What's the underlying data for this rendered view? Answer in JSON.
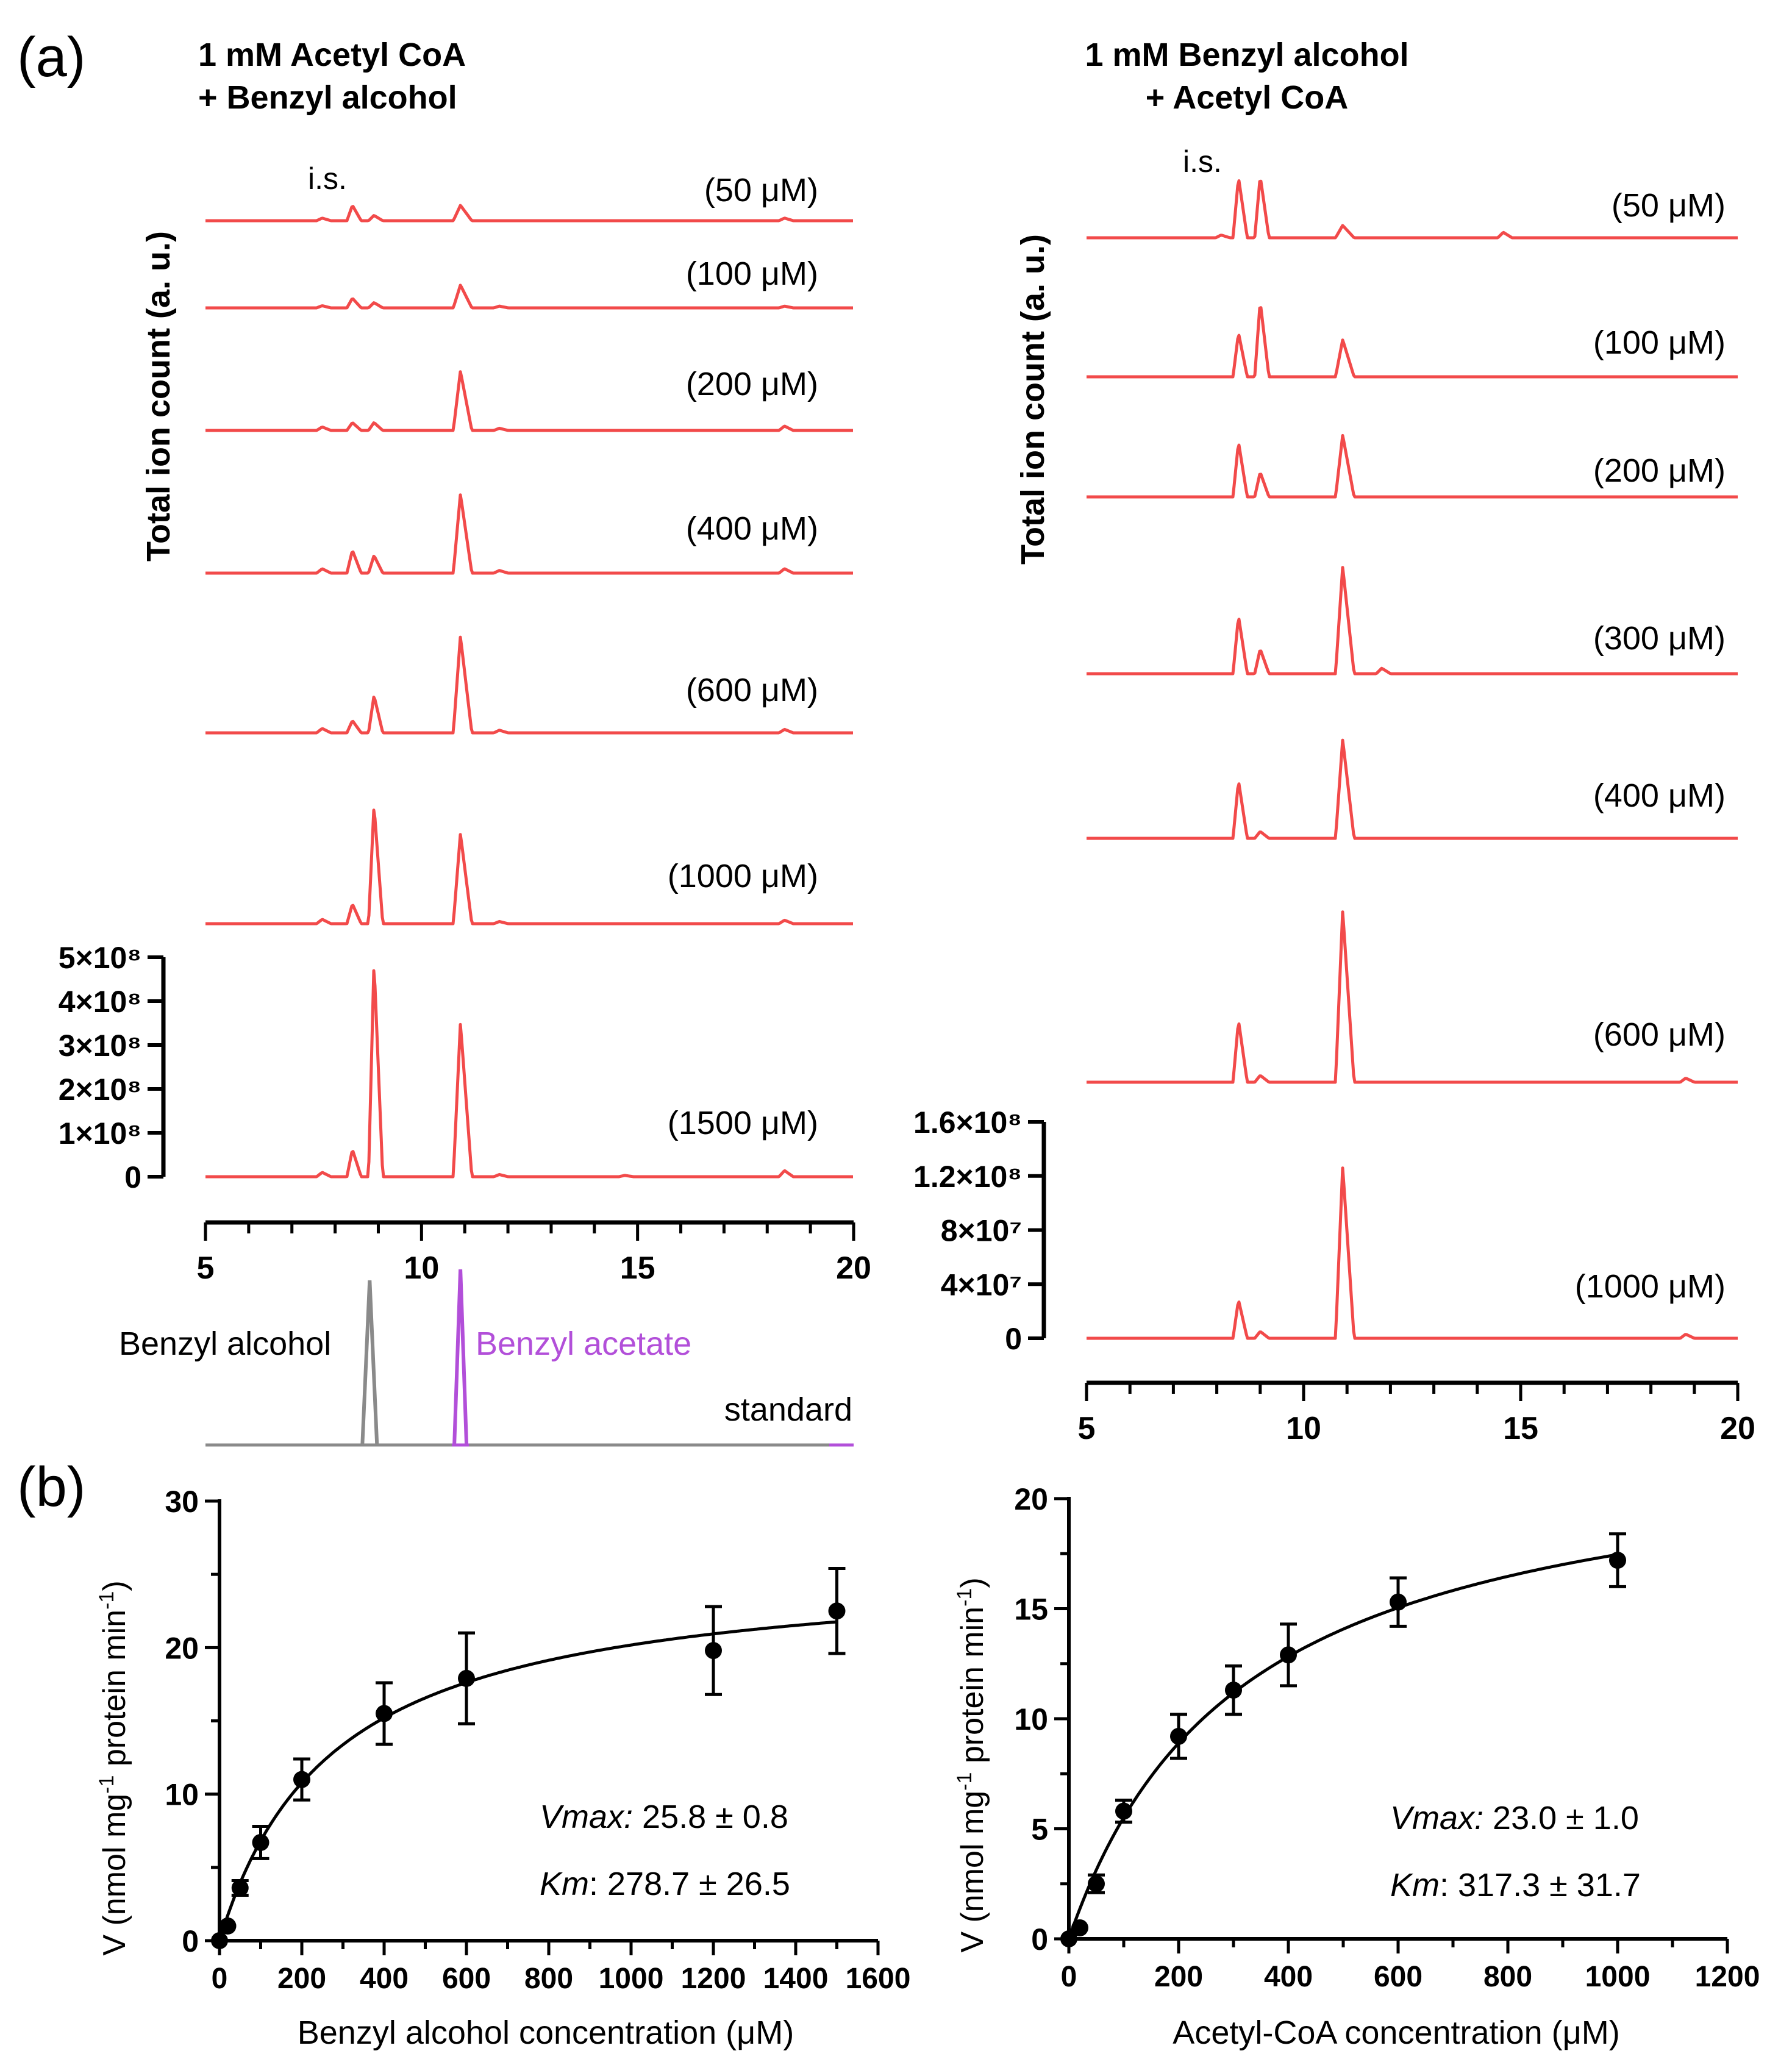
{
  "colors": {
    "trace": "#f24a4a",
    "standard_alcohol": "#8a8a8a",
    "standard_acetate": "#b24fd9",
    "axis": "#000000"
  },
  "panel_a": {
    "label": "(a)",
    "left": {
      "title_line1": "1 mM Acetyl CoA",
      "title_line2": "+ Benzyl alcohol",
      "ylabel": "Total ion count (a. u.)",
      "is_label": "i.s.",
      "traces": [
        "(50 μM)",
        "(100 μM)",
        "(200 μM)",
        "(400 μM)",
        "(600 μM)",
        "(1000 μM)",
        "(1500 μM)"
      ],
      "y_ticks": [
        "5×10⁸",
        "4×10⁸",
        "3×10⁸",
        "2×10⁸",
        "1×10⁸",
        "0"
      ],
      "x_ticks": [
        "5",
        "10",
        "15",
        "20"
      ],
      "standard": {
        "alcohol_label": "Benzyl alcohol",
        "acetate_label": "Benzyl acetate",
        "label": "standard"
      }
    },
    "right": {
      "title_line1": "1 mM Benzyl alcohol",
      "title_line2": "+ Acetyl CoA",
      "ylabel": "Total ion count (a. u.)",
      "is_label": "i.s.",
      "traces": [
        "(50 μM)",
        "(100 μM)",
        "(200 μM)",
        "(300 μM)",
        "(400 μM)",
        "(600 μM)",
        "(1000 μM)"
      ],
      "y_ticks": [
        "1.6×10⁸",
        "1.2×10⁸",
        "8×10⁷",
        "4×10⁷",
        "0"
      ],
      "x_ticks": [
        "5",
        "10",
        "15",
        "20"
      ]
    }
  },
  "panel_b": {
    "label": "(b)",
    "left": {
      "ylabel_main": "V (nmol mg",
      "ylabel_sup": "-1",
      "ylabel_mid": " protein min",
      "ylabel_end": ")",
      "xlabel": "Benzyl alcohol concentration (μM)",
      "y_ticks": [
        "0",
        "10",
        "20",
        "30"
      ],
      "x_ticks": [
        "0",
        "200",
        "400",
        "600",
        "800",
        "1000",
        "1200",
        "1400",
        "1600"
      ],
      "vmax_label": "Vmax:",
      "vmax_value": " 25.8 ± 0.8",
      "km_label": "Km",
      "km_value": ": 278.7 ± 26.5"
    },
    "right": {
      "ylabel_main": "V (nmol mg",
      "ylabel_sup": "-1",
      "ylabel_mid": " protein min",
      "ylabel_end": ")",
      "xlabel": "Acetyl-CoA concentration (μM)",
      "y_ticks": [
        "0",
        "5",
        "10",
        "15",
        "20"
      ],
      "x_ticks": [
        "0",
        "200",
        "400",
        "600",
        "800",
        "1000",
        "1200"
      ],
      "vmax_label": "Vmax:",
      "vmax_value": " 23.0 ± 1.0",
      "km_label": "Km",
      "km_value": ": 317.3 ± 31.7"
    }
  },
  "chart_data": [
    {
      "type": "line",
      "title": "1 mM Acetyl CoA + Benzyl alcohol",
      "xlabel": "",
      "ylabel": "Total ion count (a. u.)",
      "xlim": [
        5,
        20
      ],
      "ylim": [
        0,
        500000000
      ],
      "peak_times": {
        "is": 8.4,
        "benzyl_alcohol": 8.9,
        "benzyl_acetate": 10.9
      },
      "series": [
        {
          "name": "(50 μM)",
          "peaks": [
            [
              7.7,
              6000000
            ],
            [
              8.4,
              35000000
            ],
            [
              8.9,
              12000000
            ],
            [
              10.9,
              35000000
            ],
            [
              18.4,
              6000000
            ]
          ]
        },
        {
          "name": "(100 μM)",
          "peaks": [
            [
              7.7,
              5000000
            ],
            [
              8.4,
              22000000
            ],
            [
              8.9,
              12000000
            ],
            [
              10.9,
              52000000
            ],
            [
              11.8,
              4000000
            ],
            [
              18.4,
              4000000
            ]
          ]
        },
        {
          "name": "(200 μM)",
          "peaks": [
            [
              7.7,
              8000000
            ],
            [
              8.4,
              18000000
            ],
            [
              8.9,
              18000000
            ],
            [
              10.9,
              135000000
            ],
            [
              11.8,
              5000000
            ],
            [
              18.4,
              10000000
            ]
          ]
        },
        {
          "name": "(400 μM)",
          "peaks": [
            [
              7.7,
              10000000
            ],
            [
              8.4,
              52000000
            ],
            [
              8.9,
              40000000
            ],
            [
              10.9,
              180000000
            ],
            [
              11.8,
              6000000
            ],
            [
              18.4,
              10000000
            ]
          ]
        },
        {
          "name": "(600 μM)",
          "peaks": [
            [
              7.7,
              10000000
            ],
            [
              8.4,
              28000000
            ],
            [
              8.9,
              85000000
            ],
            [
              10.9,
              220000000
            ],
            [
              11.8,
              6000000
            ],
            [
              18.4,
              8000000
            ]
          ]
        },
        {
          "name": "(1000 μM)",
          "peaks": [
            [
              7.7,
              10000000
            ],
            [
              8.4,
              45000000
            ],
            [
              8.9,
              270000000
            ],
            [
              10.9,
              205000000
            ],
            [
              11.8,
              5000000
            ],
            [
              18.4,
              8000000
            ]
          ]
        },
        {
          "name": "(1500 μM)",
          "peaks": [
            [
              7.7,
              10000000
            ],
            [
              8.4,
              62000000
            ],
            [
              8.9,
              490000000
            ],
            [
              10.9,
              350000000
            ],
            [
              11.8,
              5000000
            ],
            [
              14.7,
              3000000
            ],
            [
              18.4,
              14000000
            ]
          ]
        }
      ]
    },
    {
      "type": "line",
      "title": "standard",
      "xlim": [
        5,
        20
      ],
      "series": [
        {
          "name": "Benzyl alcohol",
          "peak_time": 8.8
        },
        {
          "name": "Benzyl acetate",
          "peak_time": 10.9
        }
      ]
    },
    {
      "type": "line",
      "title": "1 mM Benzyl alcohol + Acetyl CoA",
      "xlabel": "",
      "ylabel": "Total ion count (a. u.)",
      "xlim": [
        5,
        20
      ],
      "ylim": [
        0,
        160000000
      ],
      "peak_times": {
        "is": 8.5,
        "benzyl_alcohol": 9.0,
        "benzyl_acetate": 10.9
      },
      "series": [
        {
          "name": "(50 μM)",
          "peaks": [
            [
              8.1,
              2000000
            ],
            [
              8.5,
              44000000
            ],
            [
              9.0,
              45000000
            ],
            [
              10.9,
              9000000
            ],
            [
              14.6,
              4000000
            ]
          ]
        },
        {
          "name": "(100 μM)",
          "peaks": [
            [
              8.5,
              32000000
            ],
            [
              9.0,
              55000000
            ],
            [
              10.9,
              27000000
            ]
          ]
        },
        {
          "name": "(200 μM)",
          "peaks": [
            [
              8.5,
              40000000
            ],
            [
              9.0,
              18000000
            ],
            [
              10.9,
              45000000
            ]
          ]
        },
        {
          "name": "(300 μM)",
          "peaks": [
            [
              8.5,
              42000000
            ],
            [
              9.0,
              18000000
            ],
            [
              10.9,
              78000000
            ],
            [
              11.8,
              4000000
            ]
          ]
        },
        {
          "name": "(400 μM)",
          "peaks": [
            [
              8.5,
              42000000
            ],
            [
              9.0,
              5000000
            ],
            [
              10.9,
              72000000
            ]
          ]
        },
        {
          "name": "(600 μM)",
          "peaks": [
            [
              8.5,
              45000000
            ],
            [
              9.0,
              5000000
            ],
            [
              10.9,
              125000000
            ],
            [
              18.8,
              3000000
            ]
          ]
        },
        {
          "name": "(1000 μM)",
          "peaks": [
            [
              8.5,
              28000000
            ],
            [
              9.0,
              5000000
            ],
            [
              10.9,
              125000000
            ],
            [
              18.8,
              3000000
            ]
          ]
        }
      ]
    },
    {
      "type": "scatter",
      "title": "",
      "xlabel": "Benzyl alcohol concentration (μM)",
      "ylabel": "V (nmol mg-1 protein min-1)",
      "xlim": [
        0,
        1600
      ],
      "ylim": [
        0,
        30
      ],
      "x": [
        0,
        20,
        50,
        100,
        200,
        400,
        600,
        1200,
        1500
      ],
      "y": [
        0,
        1.0,
        3.6,
        6.7,
        11.0,
        15.5,
        17.9,
        19.8,
        22.5
      ],
      "err": [
        0,
        0,
        0.5,
        1.1,
        1.4,
        2.1,
        3.1,
        3.0,
        2.9
      ],
      "fit": {
        "model": "Michaelis-Menten",
        "vmax": 25.8,
        "km": 278.7
      }
    },
    {
      "type": "scatter",
      "title": "",
      "xlabel": "Acetyl-CoA concentration (μM)",
      "ylabel": "V (nmol mg-1 protein min-1)",
      "xlim": [
        0,
        1200
      ],
      "ylim": [
        0,
        20
      ],
      "x": [
        0,
        20,
        50,
        100,
        200,
        300,
        400,
        600,
        1000
      ],
      "y": [
        0,
        0.5,
        2.5,
        5.8,
        9.2,
        11.3,
        12.9,
        15.3,
        17.2
      ],
      "err": [
        0,
        0,
        0.4,
        0.5,
        1.0,
        1.1,
        1.4,
        1.1,
        1.2
      ],
      "fit": {
        "model": "Michaelis-Menten",
        "vmax": 23.0,
        "km": 317.3
      }
    }
  ]
}
